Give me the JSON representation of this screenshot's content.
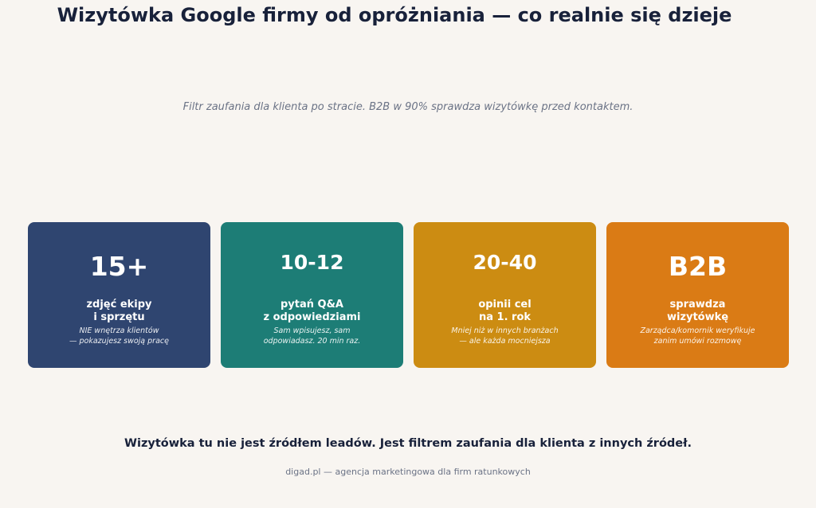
{
  "title": "Wizytówka Google firmy od opróżniania — co realnie się dzieje",
  "subtitle": "Filtr zaufania dla klienta po stracie. B2B w 90% sprawdza wizytówkę przed kontaktem.",
  "cards": [
    {
      "value": "15+",
      "label": [
        "zdjęć ekipy",
        "i sprzętu"
      ],
      "note": [
        "NIE wnętrza klientów",
        "— pokazujesz swoją pracę"
      ]
    },
    {
      "value": "10-12",
      "label": [
        "pytań Q&A",
        "z odpowiedziami"
      ],
      "note": [
        "Sam wpisujesz, sam",
        "odpowiadasz. 20 min raz."
      ]
    },
    {
      "value": "20-40",
      "label": [
        "opinii cel",
        "na 1. rok"
      ],
      "note": [
        "Mniej niż w innych branżach",
        "— ale każda mocniejsza"
      ]
    },
    {
      "value": "B2B",
      "label": [
        "sprawdza",
        "wizytówkę"
      ],
      "note": [
        "Zarządca/komornik weryfikuje",
        "zanim umówi rozmowę"
      ]
    }
  ],
  "conclusion": "Wizytówka tu nie jest źródłem leadów. Jest filtrem zaufania dla klienta z innych źródeł.",
  "source": "digad.pl — agencja marketingowa dla firm ratunkowych"
}
